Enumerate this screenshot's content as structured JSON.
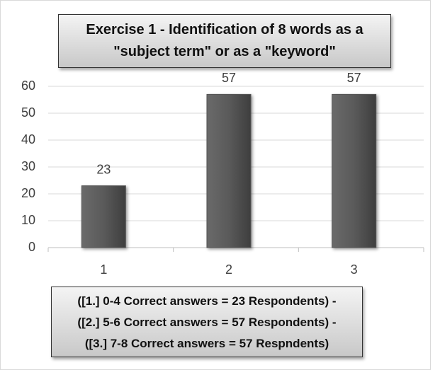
{
  "chart_data": {
    "type": "bar",
    "title": "Exercise 1 - Identification of 8 words as a \"subject term\" or as a \"keyword\"",
    "categories": [
      "1",
      "2",
      "3"
    ],
    "values": [
      23,
      57,
      57
    ],
    "color": "#555555",
    "ylim": [
      0,
      60
    ],
    "yticks": [
      0,
      10,
      20,
      30,
      40,
      50,
      60
    ],
    "grid": true,
    "annotations": [
      "([1.] 0-4 Correct answers = 23 Respondents) -",
      "([2.] 5-6 Correct answers = 57 Respondents) -",
      "([3.] 7-8 Correct answers = 57 Respndents)"
    ]
  }
}
